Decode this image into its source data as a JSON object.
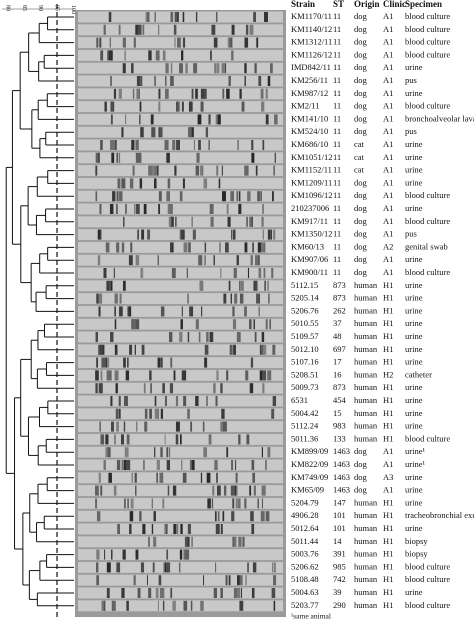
{
  "scale": {
    "labels": [
      "80",
      "85",
      "90",
      "95",
      "100"
    ]
  },
  "table": {
    "header": [
      "Strain",
      "ST",
      "Origin",
      "Clinic",
      "Specimen"
    ],
    "rows": [
      [
        "KM1170/11",
        "11",
        "dog",
        "A1",
        "blood culture"
      ],
      [
        "KM1140/12",
        "11",
        "dog",
        "A1",
        "blood culture"
      ],
      [
        "KM1312/11",
        "11",
        "dog",
        "A1",
        "blood culture"
      ],
      [
        "KM1126/12",
        "11",
        "dog",
        "A1",
        "blood culture"
      ],
      [
        "IMD842/11",
        "11",
        "dog",
        "A1",
        "urine"
      ],
      [
        "KM256/11",
        "11",
        "dog",
        "A1",
        "pus"
      ],
      [
        "KM987/12",
        "11",
        "dog",
        "A1",
        "urine"
      ],
      [
        "KM2/11",
        "11",
        "dog",
        "A1",
        "blood culture"
      ],
      [
        "KM141/10",
        "11",
        "dog",
        "A1",
        "bronchoalveolar lavage"
      ],
      [
        "KM524/10",
        "11",
        "dog",
        "A1",
        "pus"
      ],
      [
        "KM686/10",
        "11",
        "cat",
        "A1",
        "urine"
      ],
      [
        "KM1051/12",
        "11",
        "cat",
        "A1",
        "urine"
      ],
      [
        "KM1152/11",
        "11",
        "cat",
        "A1",
        "urine"
      ],
      [
        "KM1209/11",
        "11",
        "dog",
        "A1",
        "urine"
      ],
      [
        "KM1096/12",
        "11",
        "dog",
        "A1",
        "blood culture"
      ],
      [
        "210237006",
        "11",
        "dog",
        "A1",
        "urine"
      ],
      [
        "KM917/11",
        "11",
        "dog",
        "A1",
        "blood culture"
      ],
      [
        "KM1350/12",
        "11",
        "dog",
        "A1",
        "pus"
      ],
      [
        "KM60/13",
        "11",
        "dog",
        "A2",
        "genital swab"
      ],
      [
        "KM907/06",
        "11",
        "dog",
        "A1",
        "urine"
      ],
      [
        "KM900/11",
        "11",
        "dog",
        "A1",
        "blood culture"
      ],
      [
        "5112.15",
        "873",
        "human",
        "H1",
        "urine"
      ],
      [
        "5205.14",
        "873",
        "human",
        "H1",
        "urine"
      ],
      [
        "5206.76",
        "262",
        "human",
        "H1",
        "urine"
      ],
      [
        "5010.55",
        "37",
        "human",
        "H1",
        "urine"
      ],
      [
        "5109.57",
        "48",
        "human",
        "H1",
        "urine"
      ],
      [
        "5012.10",
        "697",
        "human",
        "H1",
        "urine"
      ],
      [
        "5107.16",
        "17",
        "human",
        "H1",
        "urine"
      ],
      [
        "5208.51",
        "16",
        "human",
        "H2",
        "catheter"
      ],
      [
        "5009.73",
        "873",
        "human",
        "H1",
        "urine"
      ],
      [
        "6531",
        "454",
        "human",
        "H1",
        "urine"
      ],
      [
        "5004.42",
        "15",
        "human",
        "H1",
        "urine"
      ],
      [
        "5112.24",
        "983",
        "human",
        "H1",
        "urine"
      ],
      [
        "5011.36",
        "133",
        "human",
        "H1",
        "blood culture"
      ],
      [
        "KM899/09",
        "1463",
        "dog",
        "A1",
        "urine¹"
      ],
      [
        "KM822/09",
        "1463",
        "dog",
        "A1",
        "urine¹"
      ],
      [
        "KM749/09",
        "1463",
        "dog",
        "A3",
        "urine"
      ],
      [
        "KM65/09",
        "1463",
        "dog",
        "A1",
        "urine"
      ],
      [
        "5204.79",
        "147",
        "human",
        "H1",
        "urine"
      ],
      [
        "4906.28",
        "101",
        "human",
        "H1",
        "tracheobronchial exudate"
      ],
      [
        "5012.64",
        "101",
        "human",
        "H1",
        "urine"
      ],
      [
        "5011.44",
        "14",
        "human",
        "H1",
        "biopsy"
      ],
      [
        "5003.76",
        "391",
        "human",
        "H1",
        "biopsy"
      ],
      [
        "5206.62",
        "985",
        "human",
        "H1",
        "blood culture"
      ],
      [
        "5108.48",
        "742",
        "human",
        "H1",
        "blood culture"
      ],
      [
        "5004.63",
        "39",
        "human",
        "H1",
        "urine"
      ],
      [
        "5203.77",
        "290",
        "human",
        "H1",
        "blood culture"
      ]
    ]
  },
  "footnote": "¹same animal"
}
